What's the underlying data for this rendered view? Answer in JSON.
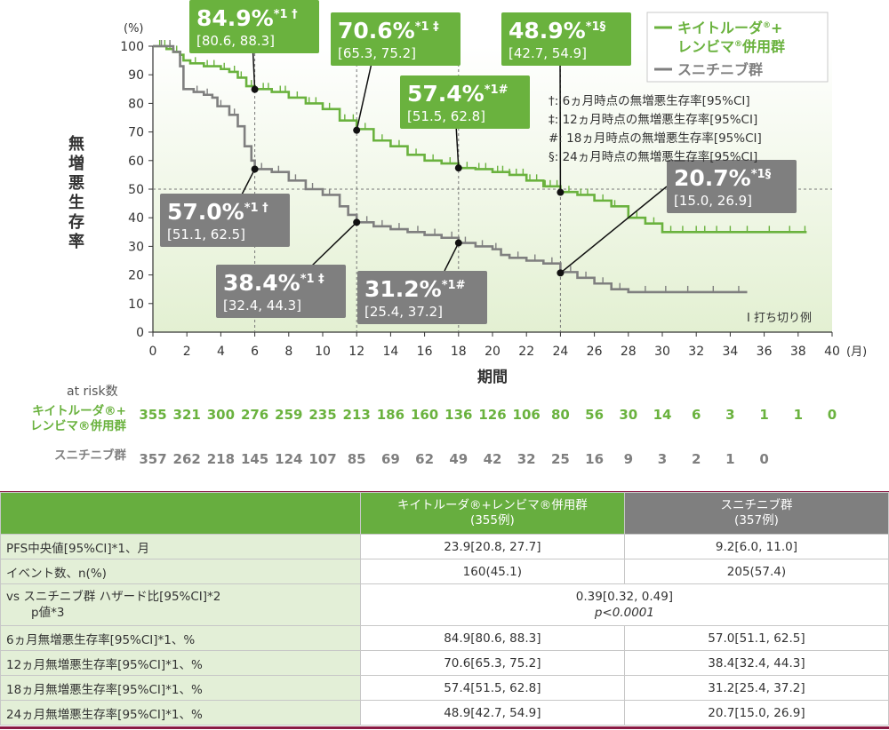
{
  "chart_data": {
    "type": "line",
    "ylabel": "無増悪生存率",
    "yunit": "(%)",
    "xlabel": "期間",
    "xunit": "(月)",
    "xlim": [
      0,
      40
    ],
    "ylim": [
      0,
      100
    ],
    "xticks": [
      0,
      2,
      4,
      6,
      8,
      10,
      12,
      14,
      16,
      18,
      20,
      22,
      24,
      26,
      28,
      30,
      32,
      34,
      36,
      38,
      40
    ],
    "yticks": [
      0,
      10,
      20,
      30,
      40,
      50,
      60,
      70,
      80,
      90,
      100
    ],
    "grid": false,
    "legend_position": "top-right",
    "series": [
      {
        "name": "キイトルーダ®+レンビマ®併用群",
        "color": "#6ab23e",
        "points": [
          [
            0,
            100
          ],
          [
            0.8,
            99
          ],
          [
            1.2,
            98
          ],
          [
            1.6,
            97
          ],
          [
            1.8,
            95
          ],
          [
            2.2,
            94
          ],
          [
            3,
            93
          ],
          [
            4,
            92
          ],
          [
            4.5,
            91
          ],
          [
            5,
            89
          ],
          [
            5.5,
            86
          ],
          [
            6,
            85
          ],
          [
            7,
            84
          ],
          [
            8,
            82
          ],
          [
            9,
            80
          ],
          [
            10,
            78
          ],
          [
            11,
            74
          ],
          [
            12,
            71
          ],
          [
            13,
            67
          ],
          [
            14,
            65
          ],
          [
            15,
            62
          ],
          [
            16,
            60
          ],
          [
            17,
            59
          ],
          [
            18,
            57.4
          ],
          [
            19,
            57
          ],
          [
            20,
            56
          ],
          [
            21,
            55
          ],
          [
            22,
            53
          ],
          [
            23,
            51
          ],
          [
            24,
            49
          ],
          [
            25,
            48
          ],
          [
            26,
            46
          ],
          [
            27,
            44
          ],
          [
            28,
            40
          ],
          [
            29,
            38
          ],
          [
            30,
            35
          ],
          [
            38.5,
            35
          ]
        ],
        "censor_x": [
          0.4,
          0.7,
          1,
          1.4,
          2.5,
          3.2,
          3.6,
          4.2,
          4.8,
          5.2,
          5.8,
          6.5,
          6.8,
          7.5,
          7.8,
          8.5,
          9.2,
          9.6,
          10.4,
          11.3,
          11.8,
          12.5,
          13.5,
          14.5,
          15.5,
          16.5,
          17.5,
          18.5,
          19.2,
          19.6,
          20.3,
          20.6,
          21,
          21.4,
          21.8,
          22.2,
          22.6,
          23.1,
          23.4,
          23.8,
          24.5,
          25.2,
          25.6,
          26.5,
          27.2,
          28.5,
          29.5,
          30.5,
          31.2,
          32,
          32.5,
          33.2,
          34,
          35,
          36.3,
          37.5,
          38.4
        ]
      },
      {
        "name": "スニチニブ群",
        "color": "#7f7f7f",
        "points": [
          [
            0,
            100
          ],
          [
            1.2,
            98
          ],
          [
            1.6,
            93
          ],
          [
            1.8,
            85
          ],
          [
            2.4,
            84
          ],
          [
            3,
            83
          ],
          [
            3.5,
            82
          ],
          [
            3.8,
            79
          ],
          [
            4.5,
            76
          ],
          [
            5,
            72
          ],
          [
            5.4,
            65
          ],
          [
            5.8,
            60
          ],
          [
            6,
            57
          ],
          [
            7,
            56
          ],
          [
            8,
            53
          ],
          [
            9,
            50
          ],
          [
            10,
            48
          ],
          [
            11,
            44
          ],
          [
            11.5,
            41
          ],
          [
            12,
            38.4
          ],
          [
            13,
            37
          ],
          [
            14,
            36
          ],
          [
            15,
            35
          ],
          [
            16,
            34
          ],
          [
            17,
            33
          ],
          [
            18,
            31.2
          ],
          [
            19,
            30
          ],
          [
            20,
            29
          ],
          [
            20.5,
            27
          ],
          [
            21,
            26
          ],
          [
            22,
            25
          ],
          [
            23,
            24
          ],
          [
            24,
            21
          ],
          [
            25,
            19
          ],
          [
            26,
            17
          ],
          [
            27,
            15
          ],
          [
            28,
            14
          ],
          [
            35,
            14
          ]
        ],
        "censor_x": [
          0.5,
          1,
          2.6,
          3.2,
          4,
          4.8,
          6.4,
          7.4,
          8.4,
          9.4,
          10.4,
          12.6,
          13.5,
          14.5,
          15.6,
          16.6,
          17.6,
          18.4,
          19.4,
          20.2,
          21.5,
          22.5,
          23.5,
          24.6,
          25.5,
          26.5,
          27.5,
          29,
          30.2,
          31.5,
          33,
          34.5
        ]
      }
    ],
    "annotations": [
      {
        "series": 0,
        "x": 6,
        "y": 84.9,
        "value": "84.9%",
        "mark": "*1 †",
        "ci": "[80.6, 88.3]"
      },
      {
        "series": 0,
        "x": 12,
        "y": 70.6,
        "value": "70.6%",
        "mark": "*1 ‡",
        "ci": "[65.3, 75.2]"
      },
      {
        "series": 0,
        "x": 18,
        "y": 57.4,
        "value": "57.4%",
        "mark": "*1#",
        "ci": "[51.5, 62.8]"
      },
      {
        "series": 0,
        "x": 24,
        "y": 48.9,
        "value": "48.9%",
        "mark": "*1§",
        "ci": "[42.7, 54.9]"
      },
      {
        "series": 1,
        "x": 6,
        "y": 57.0,
        "value": "57.0%",
        "mark": "*1 †",
        "ci": "[51.1, 62.5]"
      },
      {
        "series": 1,
        "x": 12,
        "y": 38.4,
        "value": "38.4%",
        "mark": "*1 ‡",
        "ci": "[32.4, 44.3]"
      },
      {
        "series": 1,
        "x": 18,
        "y": 31.2,
        "value": "31.2%",
        "mark": "*1#",
        "ci": "[25.4, 37.2]"
      },
      {
        "series": 1,
        "x": 24,
        "y": 20.7,
        "value": "20.7%",
        "mark": "*1§",
        "ci": "[15.0, 26.9]"
      }
    ],
    "footnotes": [
      "†: 6ヵ月時点の無増悪生存率[95%CI]",
      "‡: 12ヵ月時点の無増悪生存率[95%CI]",
      "#: 18ヵ月時点の無増悪生存率[95%CI]",
      "§: 24ヵ月時点の無増悪生存率[95%CI]"
    ],
    "legend": {
      "combo_line1": "キイトルーダ",
      "combo_line1_tail": "+",
      "combo_line2": "レンビマ",
      "combo_line2_tail": "併用群",
      "reg_mark": "®",
      "suni": "スニチニブ群"
    },
    "censor_label": "I 打ち切り例"
  },
  "at_risk": {
    "title": "at risk数",
    "combo_label_1": "キイトルーダ®+",
    "combo_label_2": "レンビマ®併用群",
    "suni_label": "スニチニブ群",
    "combo_values": [
      "355",
      "321",
      "300",
      "276",
      "259",
      "235",
      "213",
      "186",
      "160",
      "136",
      "126",
      "106",
      "80",
      "56",
      "30",
      "14",
      "6",
      "3",
      "1",
      "1",
      "0"
    ],
    "suni_values": [
      "357",
      "262",
      "218",
      "145",
      "124",
      "107",
      "85",
      "69",
      "62",
      "49",
      "42",
      "32",
      "25",
      "16",
      "9",
      "3",
      "2",
      "1",
      "0"
    ]
  },
  "table": {
    "header_combo_1": "キイトルーダ®+レンビマ®併用群",
    "header_combo_2": "(355例)",
    "header_suni_1": "スニチニブ群",
    "header_suni_2": "(357例)",
    "rows": [
      {
        "label": "PFS中央値[95%CI]*1、月",
        "combo": "23.9[20.8, 27.7]",
        "suni": "9.2[6.0, 11.0]"
      },
      {
        "label": "イベント数、n(%)",
        "combo": "160(45.1)",
        "suni": "205(57.4)"
      },
      {
        "label": "6ヵ月無増悪生存率[95%CI]*1、%",
        "combo": "84.9[80.6, 88.3]",
        "suni": "57.0[51.1, 62.5]"
      },
      {
        "label": "12ヵ月無増悪生存率[95%CI]*1、%",
        "combo": "70.6[65.3, 75.2]",
        "suni": "38.4[32.4, 44.3]"
      },
      {
        "label": "18ヵ月無増悪生存率[95%CI]*1、%",
        "combo": "57.4[51.5, 62.8]",
        "suni": "31.2[25.4, 37.2]"
      },
      {
        "label": "24ヵ月無増悪生存率[95%CI]*1、%",
        "combo": "48.9[42.7, 54.9]",
        "suni": "20.7[15.0, 26.9]"
      }
    ],
    "hr_label_1": "vs スニチニブ群 ハザード比[95%CI]*2",
    "hr_label_2": "p値*3",
    "hr_value": "0.39[0.32, 0.49]",
    "p_value": "p<0.0001"
  }
}
